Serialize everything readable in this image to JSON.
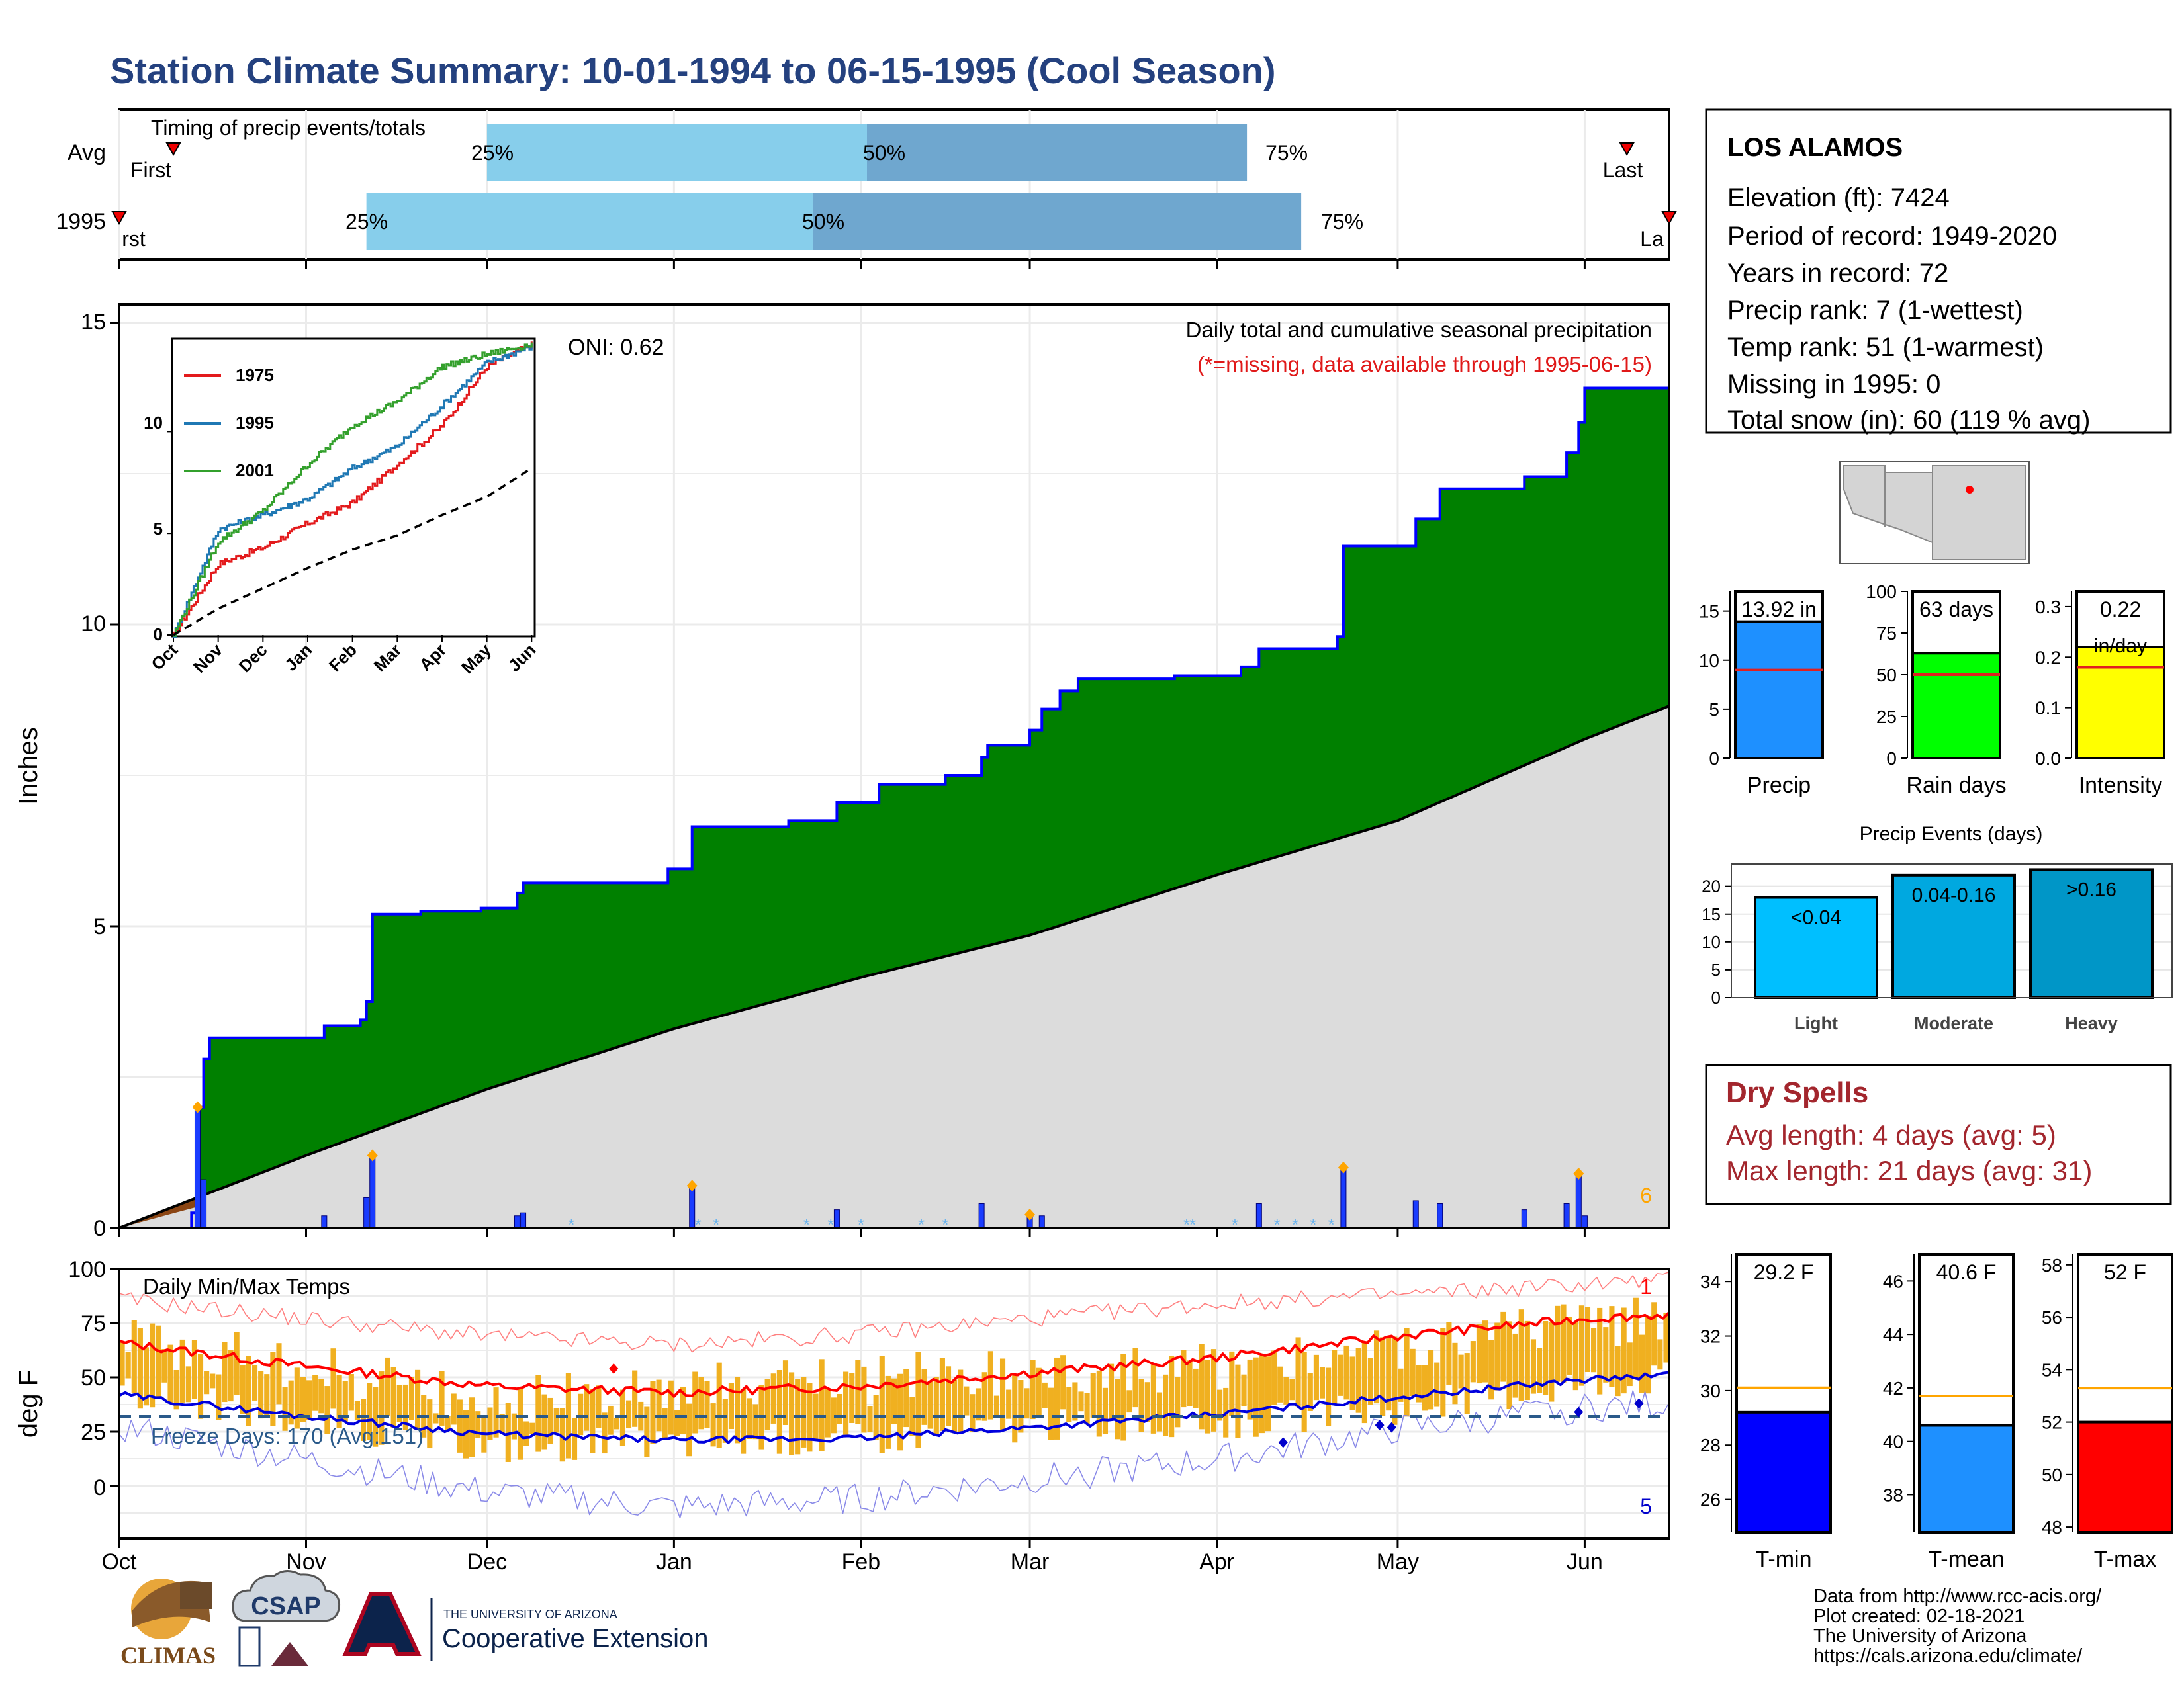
{
  "title": "Station Climate Summary: 10-01-1994 to 06-15-1995 (Cool Season)",
  "colors": {
    "title": "#24417f",
    "precip_cum": "#008000",
    "precip_line": "#0000ff",
    "avg_cum": "#dcdcdc",
    "temp_bar": "#f0b020",
    "tmax_line": "#ff0000",
    "tmin_line": "#0000dd",
    "light_blue": "#87ceeb",
    "mid_blue": "#6fa7cf",
    "dry_spell": "#a3262d",
    "missing_note": "#ff0000"
  },
  "timing": {
    "label": "Timing of precip events/totals",
    "rows": [
      {
        "name": "Avg",
        "p25": "25%",
        "p50": "50%",
        "p75": "75%",
        "first": "First",
        "last": "Last"
      },
      {
        "name": "1995",
        "p25": "25%",
        "p50": "50%",
        "p75": "75%",
        "first": "rst",
        "last": "La"
      }
    ]
  },
  "station": {
    "name": "LOS ALAMOS",
    "lines": [
      "Elevation (ft): 7424",
      "Period of record: 1949-2020",
      "Years in record: 72",
      "Precip rank: 7 (1-wettest)",
      "Temp rank: 51 (1-warmest)",
      "Missing in 1995: 0",
      "Total snow (in): 60 (119 % avg)"
    ]
  },
  "precip_panel": {
    "ylabel": "Inches",
    "subtitle": "Daily total and cumulative seasonal precipitation",
    "missing_note": "(*=missing, data available through 1995-06-15)",
    "oni": "ONI: 0.62",
    "corner_count": "6",
    "y_ticks": [
      "0",
      "5",
      "10",
      "15"
    ]
  },
  "temp_panel": {
    "ylabel": "deg F",
    "title": "Daily Min/Max Temps",
    "freeze": "Freeze Days: 170 (Avg:151)",
    "top_count": "1",
    "bottom_count": "5",
    "y_ticks": [
      "0",
      "25",
      "50",
      "75",
      "100"
    ]
  },
  "months": [
    "Oct",
    "Nov",
    "Dec",
    "Jan",
    "Feb",
    "Mar",
    "Apr",
    "May",
    "Jun"
  ],
  "inset": {
    "legend": [
      "1975",
      "1995",
      "2001"
    ],
    "y_ticks": [
      "0",
      "5",
      "10"
    ],
    "x_ticks": [
      "Oct",
      "Nov",
      "Dec",
      "Jan",
      "Feb",
      "Mar",
      "Apr",
      "May",
      "Jun"
    ]
  },
  "summary_bars": [
    {
      "label": "Precip",
      "value_text": "13.92 in",
      "ticks": [
        "0",
        "5",
        "10",
        "15"
      ]
    },
    {
      "label": "Rain days",
      "value_text": "63 days",
      "ticks": [
        "0",
        "25",
        "50",
        "75",
        "100"
      ]
    },
    {
      "label": "Intensity",
      "value_text": "0.22",
      "unit": "in/day",
      "ticks": [
        "0.0",
        "0.1",
        "0.2",
        "0.3"
      ]
    }
  ],
  "events": {
    "title": "Precip Events (days)",
    "ticks": [
      "0",
      "5",
      "10",
      "15",
      "20"
    ],
    "bars": [
      {
        "label": "Light",
        "value_text": "<0.04"
      },
      {
        "label": "Moderate",
        "value_text": "0.04-0.16"
      },
      {
        "label": "Heavy",
        "value_text": ">0.16"
      }
    ]
  },
  "dry_spells": {
    "title": "Dry Spells",
    "avg": "Avg length: 4 days (avg: 5)",
    "max": "Max length: 21 days (avg: 31)"
  },
  "temp_bars": [
    {
      "label": "T-min",
      "value_text": "29.2 F",
      "ticks": [
        "26",
        "28",
        "30",
        "32",
        "34"
      ]
    },
    {
      "label": "T-mean",
      "value_text": "40.6 F",
      "ticks": [
        "38",
        "40",
        "42",
        "44",
        "46"
      ]
    },
    {
      "label": "T-max",
      "value_text": "52 F",
      "ticks": [
        "48",
        "50",
        "52",
        "54",
        "56",
        "58"
      ]
    }
  ],
  "footer": [
    "Data from http://www.rcc-acis.org/",
    "Plot created: 02-18-2021",
    "The University of Arizona",
    "https://cals.arizona.edu/climate/"
  ],
  "logos": {
    "climas": "CLIMAS",
    "csap": "CSAP",
    "ua_small": "THE UNIVERSITY OF ARIZONA",
    "ua_big": "Cooperative Extension",
    "ua_letter": "A"
  },
  "chart_data": [
    {
      "type": "bar",
      "name": "timing",
      "categories": [
        "Avg",
        "1995"
      ],
      "series": [
        {
          "name": "Avg",
          "first": "Oct 10",
          "p25": "Dec 1",
          "p50": "Feb 2",
          "p75": "Apr 6",
          "last": "Jun 8"
        },
        {
          "name": "1995",
          "first": "Oct 1",
          "p25": "Nov 11",
          "p50": "Jan 24",
          "p75": "Apr 15",
          "last": "Jun 15"
        }
      ]
    },
    {
      "type": "area",
      "name": "cumulative precipitation",
      "ylabel": "Inches",
      "ylim": [
        0,
        15
      ],
      "x_range": [
        "1994-10-01",
        "1995-06-15"
      ],
      "series": [
        {
          "name": "1995 cumulative",
          "points": [
            [
              "1994-10-01",
              0.0
            ],
            [
              "1994-10-13",
              0.25
            ],
            [
              "1994-10-14",
              2.0
            ],
            [
              "1994-10-15",
              2.8
            ],
            [
              "1994-10-16",
              3.15
            ],
            [
              "1994-10-30",
              3.15
            ],
            [
              "1994-11-04",
              3.35
            ],
            [
              "1994-11-10",
              3.45
            ],
            [
              "1994-11-11",
              3.75
            ],
            [
              "1994-11-12",
              5.2
            ],
            [
              "1994-11-20",
              5.25
            ],
            [
              "1994-11-30",
              5.3
            ],
            [
              "1994-12-06",
              5.55
            ],
            [
              "1994-12-07",
              5.72
            ],
            [
              "1994-12-31",
              5.95
            ],
            [
              "1995-01-04",
              6.65
            ],
            [
              "1995-01-15",
              6.65
            ],
            [
              "1995-01-20",
              6.75
            ],
            [
              "1995-01-28",
              7.05
            ],
            [
              "1995-02-04",
              7.35
            ],
            [
              "1995-02-15",
              7.5
            ],
            [
              "1995-02-21",
              7.8
            ],
            [
              "1995-02-22",
              8.0
            ],
            [
              "1995-03-01",
              8.25
            ],
            [
              "1995-03-03",
              8.6
            ],
            [
              "1995-03-06",
              8.9
            ],
            [
              "1995-03-09",
              9.1
            ],
            [
              "1995-03-25",
              9.15
            ],
            [
              "1995-04-05",
              9.3
            ],
            [
              "1995-04-08",
              9.6
            ],
            [
              "1995-04-21",
              9.8
            ],
            [
              "1995-04-22",
              11.3
            ],
            [
              "1995-05-04",
              11.75
            ],
            [
              "1995-05-08",
              12.25
            ],
            [
              "1995-05-22",
              12.45
            ],
            [
              "1995-05-29",
              12.85
            ],
            [
              "1995-05-31",
              13.35
            ],
            [
              "1995-06-01",
              13.92
            ],
            [
              "1995-06-15",
              13.92
            ]
          ]
        },
        {
          "name": "Average cumulative",
          "points": [
            [
              "1994-10-01",
              0.0
            ],
            [
              "1994-11-01",
              1.2
            ],
            [
              "1994-12-01",
              2.3
            ],
            [
              "1995-01-01",
              3.3
            ],
            [
              "1995-02-01",
              4.15
            ],
            [
              "1995-03-01",
              4.85
            ],
            [
              "1995-04-01",
              5.85
            ],
            [
              "1995-05-01",
              6.75
            ],
            [
              "1995-06-01",
              8.1
            ],
            [
              "1995-06-15",
              8.65
            ]
          ]
        }
      ],
      "daily_precip": [
        [
          "1994-10-14",
          2.0
        ],
        [
          "1994-10-15",
          0.8
        ],
        [
          "1994-11-04",
          0.2
        ],
        [
          "1994-11-11",
          0.5
        ],
        [
          "1994-11-12",
          1.2
        ],
        [
          "1994-12-06",
          0.2
        ],
        [
          "1994-12-07",
          0.25
        ],
        [
          "1995-01-04",
          0.7
        ],
        [
          "1995-01-28",
          0.3
        ],
        [
          "1995-02-21",
          0.4
        ],
        [
          "1995-03-01",
          0.25
        ],
        [
          "1995-03-03",
          0.2
        ],
        [
          "1995-04-08",
          0.4
        ],
        [
          "1995-04-22",
          1.0
        ],
        [
          "1995-05-04",
          0.45
        ],
        [
          "1995-05-08",
          0.4
        ],
        [
          "1995-05-22",
          0.3
        ],
        [
          "1995-05-29",
          0.4
        ],
        [
          "1995-05-31",
          0.9
        ],
        [
          "1995-06-01",
          0.2
        ]
      ]
    },
    {
      "type": "line",
      "name": "inset cumulative comparison",
      "ylim": [
        0,
        14
      ],
      "series": [
        {
          "name": "1975",
          "values": [
            0,
            3.5,
            4.3,
            5.5,
            6.5,
            8.4,
            10.3,
            13.2,
            14.3
          ]
        },
        {
          "name": "1995",
          "values": [
            0,
            5.2,
            5.9,
            6.7,
            8.2,
            9.3,
            11.3,
            13.4,
            14.2
          ]
        },
        {
          "name": "2001",
          "values": [
            0,
            4.6,
            6.1,
            8.4,
            10.3,
            11.5,
            13.2,
            13.8,
            14.3
          ]
        }
      ],
      "categories": [
        "Oct",
        "Nov",
        "Dec",
        "Jan",
        "Feb",
        "Mar",
        "Apr",
        "May",
        "Jun"
      ],
      "average": [
        0,
        1.3,
        2.3,
        3.3,
        4.2,
        4.9,
        5.9,
        6.8,
        8.2
      ]
    },
    {
      "type": "line",
      "name": "daily min/max temps",
      "ylabel": "deg F",
      "ylim": [
        -20,
        100
      ],
      "categories": [
        "Oct",
        "Nov",
        "Dec",
        "Jan",
        "Feb",
        "Mar",
        "Apr",
        "May",
        "Jun"
      ],
      "series": [
        {
          "name": "normal max",
          "values": [
            66,
            55,
            46,
            43,
            46,
            52,
            59,
            69,
            77
          ]
        },
        {
          "name": "normal min",
          "values": [
            42,
            32,
            24,
            21,
            22,
            27,
            33,
            41,
            49
          ]
        },
        {
          "name": "record max",
          "values": [
            86,
            77,
            69,
            65,
            70,
            77,
            84,
            88,
            93
          ]
        },
        {
          "name": "record min",
          "values": [
            27,
            12,
            -3,
            -10,
            -6,
            3,
            12,
            26,
            36
          ]
        },
        {
          "name": "daily max",
          "values": [
            70,
            54,
            40,
            44,
            48,
            55,
            54,
            63,
            74
          ]
        },
        {
          "name": "daily min",
          "values": [
            44,
            30,
            18,
            20,
            22,
            28,
            29,
            36,
            48
          ]
        }
      ],
      "freeze_line": 32
    },
    {
      "type": "bar",
      "name": "season summary",
      "categories": [
        "Precip",
        "Rain days",
        "Intensity"
      ],
      "values": [
        13.92,
        63,
        0.22
      ],
      "averages": [
        9.0,
        50,
        0.18
      ],
      "ylims": [
        [
          0,
          17
        ],
        [
          0,
          100
        ],
        [
          0,
          0.33
        ]
      ]
    },
    {
      "type": "bar",
      "name": "Precip Events (days)",
      "categories": [
        "Light",
        "Moderate",
        "Heavy"
      ],
      "values": [
        18,
        22,
        23
      ],
      "ylim": [
        0,
        24
      ]
    },
    {
      "type": "bar",
      "name": "seasonal temperatures",
      "categories": [
        "T-min",
        "T-mean",
        "T-max"
      ],
      "values": [
        29.2,
        40.6,
        52
      ],
      "averages": [
        30.1,
        41.7,
        53.3
      ],
      "ylims": [
        [
          24.8,
          35.0
        ],
        [
          36.6,
          47.0
        ],
        [
          47.8,
          58.4
        ]
      ]
    }
  ]
}
